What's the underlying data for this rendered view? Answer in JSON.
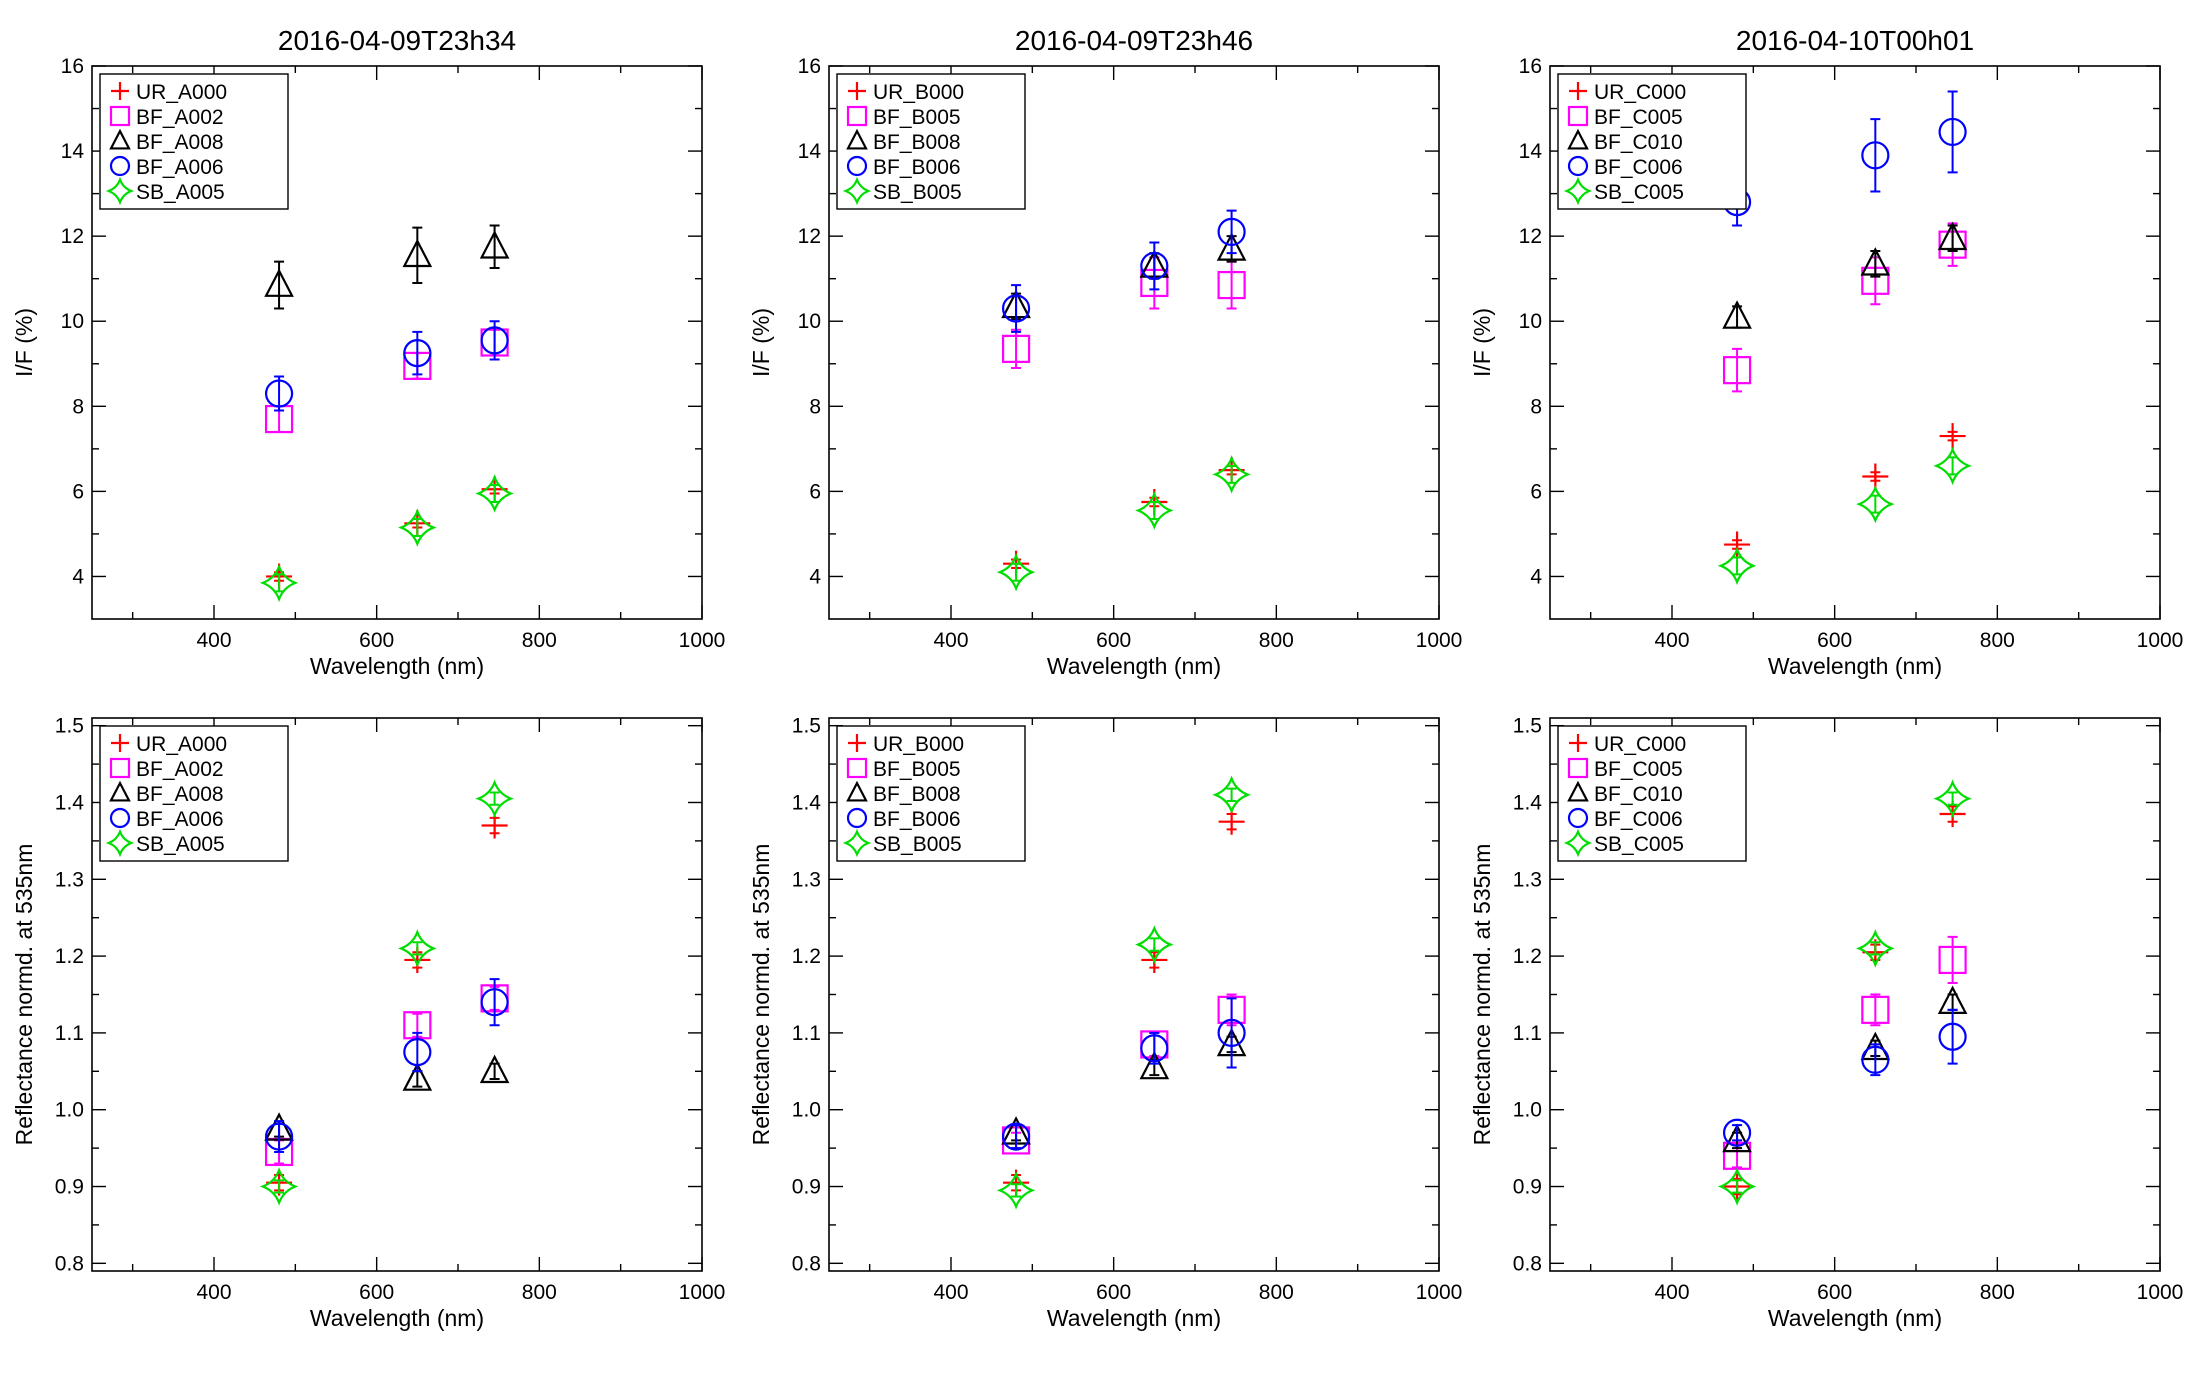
{
  "colors": {
    "UR": "#ff0000",
    "BF_sq": "#ff00ff",
    "BF_tri": "#000000",
    "BF_circ": "#0000ff",
    "SB": "#00dd00",
    "axis": "#000000",
    "background": "#ffffff"
  },
  "chart_data": [
    {
      "type": "scatter",
      "title": "2016-04-09T23h34",
      "xlabel": "Wavelength (nm)",
      "ylabel": "I/F (%)",
      "xlim": [
        250,
        1000
      ],
      "ylim": [
        3,
        16
      ],
      "xticks": [
        "400",
        "600",
        "800",
        "1000"
      ],
      "yticks": [
        "4",
        "6",
        "8",
        "10",
        "12",
        "14",
        "16"
      ],
      "legend_position": "top-left",
      "series": [
        {
          "name": "UR_A000",
          "marker": "plus",
          "x": [
            480,
            650,
            745
          ],
          "y": [
            4.0,
            5.25,
            6.05
          ],
          "err": [
            0.1,
            0.1,
            0.1
          ]
        },
        {
          "name": "BF_A002",
          "marker": "square",
          "x": [
            480,
            650,
            745
          ],
          "y": [
            7.7,
            8.95,
            9.5
          ],
          "err": [
            0.3,
            0.3,
            0.3
          ]
        },
        {
          "name": "BF_A008",
          "marker": "triangle",
          "x": [
            480,
            650,
            745
          ],
          "y": [
            10.85,
            11.55,
            11.75
          ],
          "err": [
            0.55,
            0.65,
            0.5
          ]
        },
        {
          "name": "BF_A006",
          "marker": "circle",
          "x": [
            480,
            650,
            745
          ],
          "y": [
            8.3,
            9.25,
            9.55
          ],
          "err": [
            0.4,
            0.5,
            0.45
          ]
        },
        {
          "name": "SB_A005",
          "marker": "star",
          "x": [
            480,
            650,
            745
          ],
          "y": [
            3.85,
            5.15,
            5.95
          ],
          "err": [
            0.2,
            0.2,
            0.2
          ]
        }
      ]
    },
    {
      "type": "scatter",
      "title": "2016-04-09T23h46",
      "xlabel": "Wavelength (nm)",
      "ylabel": "I/F (%)",
      "xlim": [
        250,
        1000
      ],
      "ylim": [
        3,
        16
      ],
      "xticks": [
        "400",
        "600",
        "800",
        "1000"
      ],
      "yticks": [
        "4",
        "6",
        "8",
        "10",
        "12",
        "14",
        "16"
      ],
      "legend_position": "top-left",
      "series": [
        {
          "name": "UR_B000",
          "marker": "plus",
          "x": [
            480,
            650,
            745
          ],
          "y": [
            4.3,
            5.75,
            6.5
          ],
          "err": [
            0.1,
            0.1,
            0.1
          ]
        },
        {
          "name": "BF_B005",
          "marker": "square",
          "x": [
            480,
            650,
            745
          ],
          "y": [
            9.35,
            10.9,
            10.85
          ],
          "err": [
            0.45,
            0.6,
            0.55
          ]
        },
        {
          "name": "BF_B008",
          "marker": "triangle",
          "x": [
            480,
            650,
            745
          ],
          "y": [
            10.35,
            11.3,
            11.7
          ],
          "err": [
            0.3,
            0.3,
            0.3
          ]
        },
        {
          "name": "BF_B006",
          "marker": "circle",
          "x": [
            480,
            650,
            745
          ],
          "y": [
            10.3,
            11.3,
            12.1
          ],
          "err": [
            0.55,
            0.55,
            0.5
          ]
        },
        {
          "name": "SB_B005",
          "marker": "star",
          "x": [
            480,
            650,
            745
          ],
          "y": [
            4.1,
            5.55,
            6.4
          ],
          "err": [
            0.2,
            0.2,
            0.2
          ]
        }
      ]
    },
    {
      "type": "scatter",
      "title": "2016-04-10T00h01",
      "xlabel": "Wavelength (nm)",
      "ylabel": "I/F (%)",
      "xlim": [
        250,
        1000
      ],
      "ylim": [
        3,
        16
      ],
      "xticks": [
        "400",
        "600",
        "800",
        "1000"
      ],
      "yticks": [
        "4",
        "6",
        "8",
        "10",
        "12",
        "14",
        "16"
      ],
      "legend_position": "top-left",
      "series": [
        {
          "name": "UR_C000",
          "marker": "plus",
          "x": [
            480,
            650,
            745
          ],
          "y": [
            4.75,
            6.35,
            7.3
          ],
          "err": [
            0.1,
            0.1,
            0.1
          ]
        },
        {
          "name": "BF_C005",
          "marker": "square",
          "x": [
            480,
            650,
            745
          ],
          "y": [
            8.85,
            10.95,
            11.8
          ],
          "err": [
            0.5,
            0.55,
            0.5
          ]
        },
        {
          "name": "BF_C010",
          "marker": "triangle",
          "x": [
            480,
            650,
            745
          ],
          "y": [
            10.1,
            11.35,
            11.95
          ],
          "err": [
            0.25,
            0.3,
            0.3
          ]
        },
        {
          "name": "BF_C006",
          "marker": "circle",
          "x": [
            480,
            650,
            745
          ],
          "y": [
            12.8,
            13.9,
            14.45
          ],
          "err": [
            0.55,
            0.85,
            0.95
          ]
        },
        {
          "name": "SB_C005",
          "marker": "star",
          "x": [
            480,
            650,
            745
          ],
          "y": [
            4.25,
            5.7,
            6.6
          ],
          "err": [
            0.2,
            0.2,
            0.2
          ]
        }
      ]
    },
    {
      "type": "scatter",
      "title": "",
      "xlabel": "Wavelength (nm)",
      "ylabel": "Reflectance normd. at 535nm",
      "xlim": [
        250,
        1000
      ],
      "ylim": [
        0.79,
        1.51
      ],
      "xticks": [
        "400",
        "600",
        "800",
        "1000"
      ],
      "yticks": [
        "0.8",
        "0.9",
        "1.0",
        "1.1",
        "1.2",
        "1.3",
        "1.4",
        "1.5"
      ],
      "legend_position": "top-left",
      "series": [
        {
          "name": "UR_A000",
          "marker": "plus",
          "x": [
            480,
            650,
            745
          ],
          "y": [
            0.905,
            1.195,
            1.37
          ],
          "err": [
            0.01,
            0.01,
            0.01
          ]
        },
        {
          "name": "BF_A002",
          "marker": "square",
          "x": [
            480,
            650,
            745
          ],
          "y": [
            0.945,
            1.11,
            1.145
          ],
          "err": [
            0.015,
            0.015,
            0.015
          ]
        },
        {
          "name": "BF_A008",
          "marker": "triangle",
          "x": [
            480,
            650,
            745
          ],
          "y": [
            0.975,
            1.04,
            1.05
          ],
          "err": [
            0.01,
            0.01,
            0.01
          ]
        },
        {
          "name": "BF_A006",
          "marker": "circle",
          "x": [
            480,
            650,
            745
          ],
          "y": [
            0.965,
            1.075,
            1.14
          ],
          "err": [
            0.02,
            0.025,
            0.03
          ]
        },
        {
          "name": "SB_A005",
          "marker": "star",
          "x": [
            480,
            650,
            745
          ],
          "y": [
            0.9,
            1.21,
            1.405
          ],
          "err": [
            0.008,
            0.008,
            0.008
          ]
        }
      ]
    },
    {
      "type": "scatter",
      "title": "",
      "xlabel": "Wavelength (nm)",
      "ylabel": "Reflectance normd. at 535nm",
      "xlim": [
        250,
        1000
      ],
      "ylim": [
        0.79,
        1.51
      ],
      "xticks": [
        "400",
        "600",
        "800",
        "1000"
      ],
      "yticks": [
        "0.8",
        "0.9",
        "1.0",
        "1.1",
        "1.2",
        "1.3",
        "1.4",
        "1.5"
      ],
      "legend_position": "top-left",
      "series": [
        {
          "name": "UR_B000",
          "marker": "plus",
          "x": [
            480,
            650,
            745
          ],
          "y": [
            0.905,
            1.195,
            1.375
          ],
          "err": [
            0.01,
            0.01,
            0.01
          ]
        },
        {
          "name": "BF_B005",
          "marker": "square",
          "x": [
            480,
            650,
            745
          ],
          "y": [
            0.96,
            1.085,
            1.13
          ],
          "err": [
            0.01,
            0.015,
            0.02
          ]
        },
        {
          "name": "BF_B008",
          "marker": "triangle",
          "x": [
            480,
            650,
            745
          ],
          "y": [
            0.97,
            1.055,
            1.085
          ],
          "err": [
            0.01,
            0.01,
            0.01
          ]
        },
        {
          "name": "BF_B006",
          "marker": "circle",
          "x": [
            480,
            650,
            745
          ],
          "y": [
            0.965,
            1.08,
            1.1
          ],
          "err": [
            0.015,
            0.02,
            0.045
          ]
        },
        {
          "name": "SB_B005",
          "marker": "star",
          "x": [
            480,
            650,
            745
          ],
          "y": [
            0.895,
            1.215,
            1.41
          ],
          "err": [
            0.008,
            0.008,
            0.008
          ]
        }
      ]
    },
    {
      "type": "scatter",
      "title": "",
      "xlabel": "Wavelength (nm)",
      "ylabel": "Reflectance normd. at 535nm",
      "xlim": [
        250,
        1000
      ],
      "ylim": [
        0.79,
        1.51
      ],
      "xticks": [
        "400",
        "600",
        "800",
        "1000"
      ],
      "yticks": [
        "0.8",
        "0.9",
        "1.0",
        "1.1",
        "1.2",
        "1.3",
        "1.4",
        "1.5"
      ],
      "legend_position": "top-left",
      "series": [
        {
          "name": "UR_C000",
          "marker": "plus",
          "x": [
            480,
            650,
            745
          ],
          "y": [
            0.9,
            1.205,
            1.385
          ],
          "err": [
            0.01,
            0.01,
            0.01
          ]
        },
        {
          "name": "BF_C005",
          "marker": "square",
          "x": [
            480,
            650,
            745
          ],
          "y": [
            0.94,
            1.13,
            1.195
          ],
          "err": [
            0.015,
            0.02,
            0.03
          ]
        },
        {
          "name": "BF_C010",
          "marker": "triangle",
          "x": [
            480,
            650,
            745
          ],
          "y": [
            0.96,
            1.08,
            1.14
          ],
          "err": [
            0.01,
            0.01,
            0.01
          ]
        },
        {
          "name": "BF_C006",
          "marker": "circle",
          "x": [
            480,
            650,
            745
          ],
          "y": [
            0.97,
            1.065,
            1.095
          ],
          "err": [
            0.01,
            0.02,
            0.035
          ]
        },
        {
          "name": "SB_C005",
          "marker": "star",
          "x": [
            480,
            650,
            745
          ],
          "y": [
            0.9,
            1.21,
            1.405
          ],
          "err": [
            0.008,
            0.008,
            0.008
          ]
        }
      ]
    }
  ]
}
